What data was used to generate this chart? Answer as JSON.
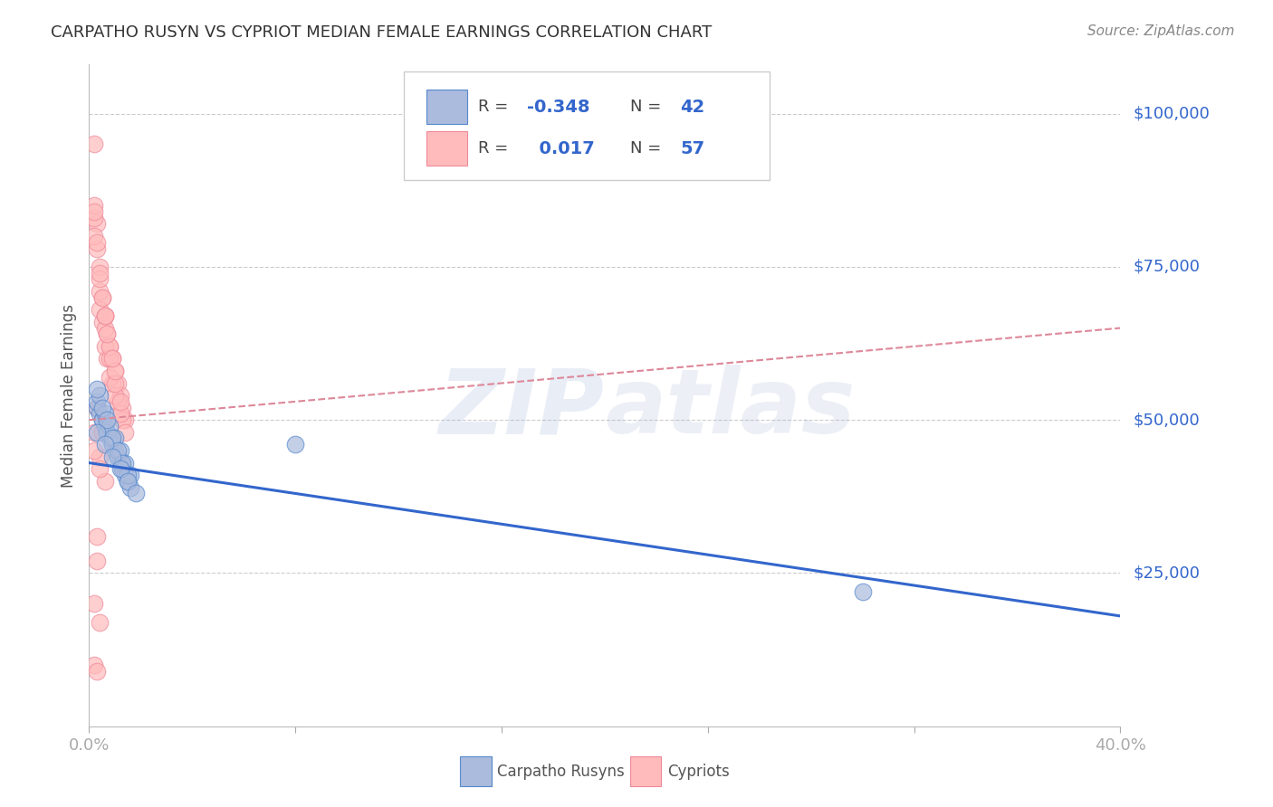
{
  "title": "CARPATHO RUSYN VS CYPRIOT MEDIAN FEMALE EARNINGS CORRELATION CHART",
  "source": "Source: ZipAtlas.com",
  "ylabel": "Median Female Earnings",
  "ytick_labels": [
    "$25,000",
    "$50,000",
    "$75,000",
    "$100,000"
  ],
  "ytick_values": [
    25000,
    50000,
    75000,
    100000
  ],
  "ylim": [
    0,
    108000
  ],
  "xlim": [
    0.0,
    0.4
  ],
  "legend_r_blue": "-0.348",
  "legend_n_blue": "42",
  "legend_r_pink": "0.017",
  "legend_n_pink": "57",
  "blue_fill": "#AABBDD",
  "blue_edge": "#5588CC",
  "pink_fill": "#FFBBBB",
  "pink_edge": "#EE8899",
  "blue_line_color": "#3366CC",
  "pink_line_color": "#DD8899",
  "background_color": "#FFFFFF",
  "grid_color": "#CCCCCC",
  "blue_scatter_x": [
    0.003,
    0.004,
    0.005,
    0.006,
    0.007,
    0.008,
    0.009,
    0.01,
    0.011,
    0.012,
    0.013,
    0.014,
    0.015,
    0.016,
    0.003,
    0.005,
    0.007,
    0.009,
    0.011,
    0.013,
    0.004,
    0.006,
    0.008,
    0.01,
    0.012,
    0.014,
    0.016,
    0.003,
    0.005,
    0.007,
    0.009,
    0.011,
    0.013,
    0.015,
    0.003,
    0.006,
    0.009,
    0.012,
    0.015,
    0.018,
    0.3,
    0.08
  ],
  "blue_scatter_y": [
    52000,
    51000,
    50000,
    49000,
    48000,
    47000,
    46000,
    45000,
    44000,
    43000,
    42000,
    41000,
    40000,
    39000,
    53000,
    50000,
    48000,
    46000,
    44000,
    42000,
    54000,
    51000,
    49000,
    47000,
    45000,
    43000,
    41000,
    55000,
    52000,
    50000,
    47000,
    45000,
    43000,
    41000,
    48000,
    46000,
    44000,
    42000,
    40000,
    38000,
    22000,
    46000
  ],
  "pink_scatter_x": [
    0.002,
    0.003,
    0.004,
    0.005,
    0.006,
    0.007,
    0.008,
    0.009,
    0.01,
    0.011,
    0.012,
    0.013,
    0.014,
    0.003,
    0.005,
    0.007,
    0.009,
    0.011,
    0.013,
    0.002,
    0.004,
    0.006,
    0.008,
    0.01,
    0.012,
    0.014,
    0.002,
    0.004,
    0.006,
    0.008,
    0.01,
    0.012,
    0.002,
    0.004,
    0.006,
    0.008,
    0.01,
    0.003,
    0.005,
    0.007,
    0.009,
    0.002,
    0.004,
    0.006,
    0.002,
    0.004,
    0.006,
    0.003,
    0.005,
    0.002,
    0.004,
    0.003,
    0.002,
    0.004,
    0.003,
    0.002,
    0.003
  ],
  "pink_scatter_y": [
    95000,
    82000,
    75000,
    70000,
    67000,
    64000,
    62000,
    60000,
    58000,
    56000,
    54000,
    52000,
    50000,
    78000,
    66000,
    60000,
    56000,
    53000,
    50000,
    80000,
    68000,
    62000,
    57000,
    54000,
    51000,
    48000,
    83000,
    71000,
    65000,
    60000,
    56000,
    53000,
    85000,
    73000,
    67000,
    62000,
    58000,
    79000,
    70000,
    64000,
    60000,
    84000,
    74000,
    67000,
    48000,
    44000,
    40000,
    52000,
    48000,
    20000,
    17000,
    31000,
    45000,
    42000,
    27000,
    10000,
    9000
  ],
  "blue_trend_x": [
    0.0,
    0.4
  ],
  "blue_trend_y": [
    43000,
    18000
  ],
  "pink_trend_x": [
    0.0,
    0.4
  ],
  "pink_trend_y": [
    50000,
    65000
  ]
}
